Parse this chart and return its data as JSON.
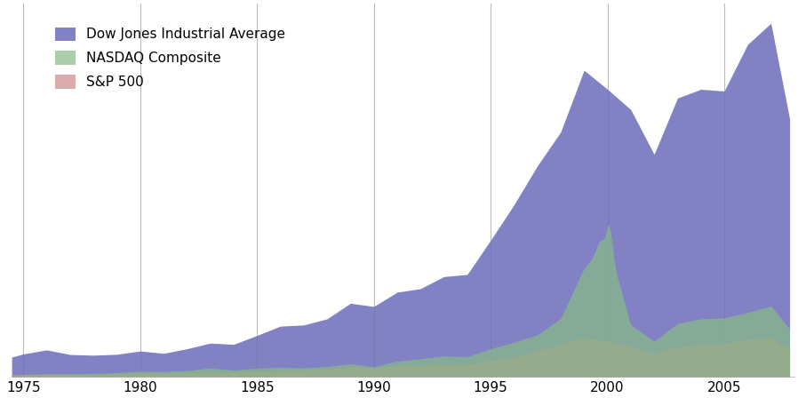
{
  "legend_labels": [
    "Dow Jones Industrial Average",
    "NASDAQ Composite",
    "S&P 500"
  ],
  "dow_color": "#7070bb",
  "nasdaq_color": "#88bb88",
  "sp500_color": "#cc8888",
  "alpha_dow": 0.88,
  "alpha_nasdaq": 0.72,
  "alpha_sp500": 0.7,
  "background_color": "#ffffff",
  "grid_color": "#bbbbbb",
  "xlim": [
    1974.5,
    2008.0
  ],
  "ylim_max": 14000,
  "xticks": [
    1975,
    1980,
    1985,
    1990,
    1995,
    2000,
    2005
  ],
  "vlines": [
    1975,
    1980,
    1985,
    1990,
    1995,
    2000,
    2005
  ],
  "years": [
    1974,
    1975,
    1976,
    1977,
    1978,
    1979,
    1980,
    1981,
    1982,
    1983,
    1984,
    1985,
    1986,
    1987,
    1988,
    1989,
    1990,
    1991,
    1992,
    1993,
    1994,
    1995,
    1996,
    1997,
    1998,
    1999,
    2000,
    2001,
    2002,
    2003,
    2004,
    2005,
    2006,
    2007,
    2008
  ],
  "dow_values": [
    616,
    852,
    1004,
    831,
    805,
    838,
    963,
    875,
    1046,
    1258,
    1211,
    1546,
    1895,
    1938,
    2168,
    2753,
    2633,
    3168,
    3301,
    3754,
    3834,
    5117,
    6448,
    7908,
    9181,
    11497,
    10787,
    10021,
    8341,
    10453,
    10783,
    10717,
    12463,
    13264,
    8776
  ],
  "nasdaq_values": [
    60,
    77,
    97,
    105,
    117,
    151,
    202,
    195,
    232,
    328,
    247,
    324,
    348,
    330,
    381,
    485,
    373,
    586,
    676,
    776,
    751,
    1052,
    1291,
    1570,
    2192,
    4069,
    5048,
    1950,
    1335,
    2003,
    2175,
    2205,
    2415,
    2652,
    1577
  ],
  "sp500_values": [
    68,
    90,
    107,
    95,
    96,
    107,
    135,
    122,
    140,
    164,
    167,
    211,
    242,
    247,
    277,
    353,
    330,
    417,
    435,
    466,
    459,
    615,
    740,
    970,
    1229,
    1469,
    1320,
    1148,
    879,
    1111,
    1211,
    1248,
    1418,
    1468,
    903
  ]
}
